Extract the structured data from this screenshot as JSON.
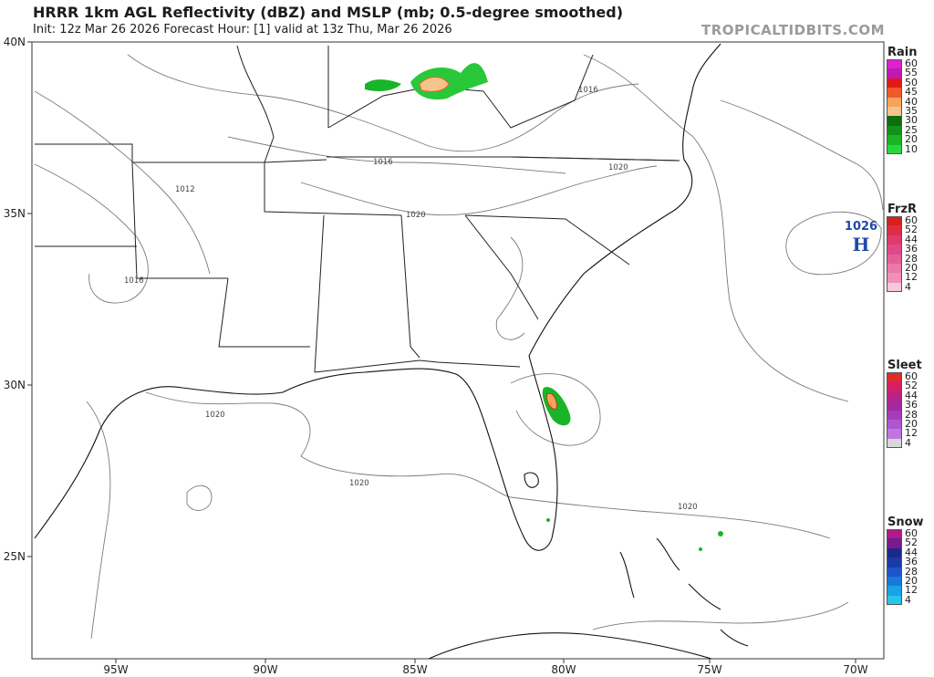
{
  "header": {
    "title": "HRRR 1km AGL Reflectivity (dBZ) and MSLP (mb; 0.5-degree smoothed)",
    "subtitle": "Init: 12z Mar 26 2026   Forecast Hour: [1]   valid at 13z Thu, Mar 26 2026",
    "brand": "TROPICALTIDBITS.COM"
  },
  "map": {
    "lat_labels": [
      "40N",
      "35N",
      "30N",
      "25N"
    ],
    "lon_labels": [
      "95W",
      "90W",
      "85W",
      "80W",
      "75W",
      "70W"
    ],
    "isobar_labels": [
      "1016",
      "1016",
      "1012",
      "1020",
      "1016",
      "1020",
      "1020",
      "1020",
      "1020"
    ],
    "high_center": {
      "value": "1026",
      "letter": "H",
      "color": "#1f4aa8"
    }
  },
  "legends": [
    {
      "title": "Rain",
      "levels": [
        "60",
        "55",
        "50",
        "45",
        "40",
        "35",
        "30",
        "25",
        "20",
        "10"
      ],
      "colors": [
        "#e020d0",
        "#c01ab0",
        "#e01818",
        "#f05a2a",
        "#f7a35a",
        "#f5c48a",
        "#0e6e0e",
        "#13921a",
        "#19b428",
        "#28d83a"
      ]
    },
    {
      "title": "FrzR",
      "levels": [
        "60",
        "52",
        "44",
        "36",
        "28",
        "20",
        "12",
        "4"
      ],
      "colors": [
        "#d62020",
        "#e02c46",
        "#de3a6e",
        "#e04a84",
        "#e45f98",
        "#e97aaa",
        "#f08fb8",
        "#f6c8d8"
      ]
    },
    {
      "title": "Sleet",
      "levels": [
        "60",
        "52",
        "44",
        "36",
        "28",
        "20",
        "12",
        "4"
      ],
      "colors": [
        "#e02c2c",
        "#d62063",
        "#b82286",
        "#a528a0",
        "#a63db8",
        "#b055d0",
        "#c076e0",
        "#d8d8d8"
      ]
    },
    {
      "title": "Snow",
      "levels": [
        "60",
        "52",
        "44",
        "36",
        "28",
        "20",
        "12",
        "4"
      ],
      "colors": [
        "#b01a8a",
        "#7a1a90",
        "#1a2a8a",
        "#1a3aa8",
        "#1a56c8",
        "#1a78dc",
        "#1aa2e6",
        "#26c6ea"
      ]
    }
  ]
}
